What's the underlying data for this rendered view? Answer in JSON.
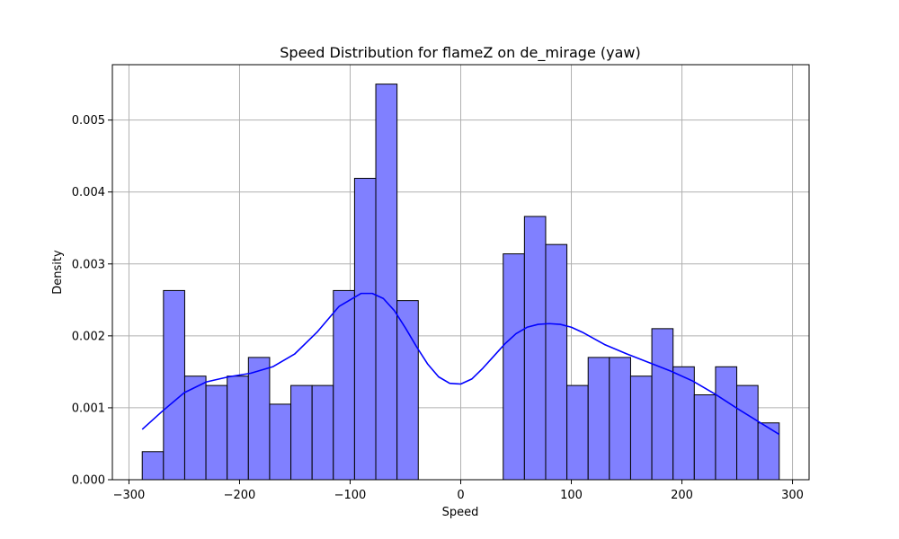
{
  "chart_data": {
    "type": "bar",
    "title": "Speed Distribution for flameZ on de_mirage (yaw)",
    "xlabel": "Speed",
    "ylabel": "Density",
    "xlim": [
      -315,
      315
    ],
    "ylim": [
      0,
      0.00577
    ],
    "grid": true,
    "xticks": [
      -300,
      -200,
      -100,
      0,
      100,
      200,
      300
    ],
    "xtick_labels": [
      "−300",
      "−200",
      "−100",
      "0",
      "100",
      "200",
      "300"
    ],
    "yticks": [
      0,
      0.001,
      0.002,
      0.003,
      0.004,
      0.005
    ],
    "ytick_labels": [
      "0.000",
      "0.001",
      "0.002",
      "0.003",
      "0.004",
      "0.005"
    ],
    "bin_edges": [
      -288,
      -268.8,
      -249.6,
      -230.4,
      -211.2,
      -192,
      -172.8,
      -153.6,
      -134.4,
      -115.2,
      -96,
      -76.8,
      -57.6,
      -38.4,
      -19.2,
      0,
      19.2,
      38.4,
      57.6,
      76.8,
      96,
      115.2,
      134.4,
      153.6,
      172.8,
      192,
      211.2,
      230.4,
      249.6,
      268.8,
      288
    ],
    "values": [
      0.00039,
      0.00263,
      0.00144,
      0.00131,
      0.00144,
      0.0017,
      0.00105,
      0.00131,
      0.00131,
      0.00263,
      0.00419,
      0.0055,
      0.00249,
      0,
      0,
      0,
      0,
      0.00314,
      0.00366,
      0.00327,
      0.00131,
      0.0017,
      0.0017,
      0.00144,
      0.0021,
      0.00157,
      0.00118,
      0.00157,
      0.00131,
      0.00079
    ],
    "kde": {
      "x": [
        -288,
        -270,
        -250,
        -230,
        -210,
        -190,
        -170,
        -150,
        -130,
        -110,
        -90,
        -80,
        -70,
        -60,
        -50,
        -40,
        -30,
        -20,
        -10,
        0,
        10,
        20,
        30,
        40,
        50,
        60,
        70,
        80,
        90,
        100,
        110,
        130,
        150,
        170,
        190,
        210,
        230,
        250,
        270,
        288
      ],
      "y": [
        0.0007,
        0.00095,
        0.00121,
        0.00136,
        0.00143,
        0.00148,
        0.00157,
        0.00175,
        0.00205,
        0.00241,
        0.00259,
        0.00259,
        0.00252,
        0.00235,
        0.00211,
        0.00185,
        0.00161,
        0.00143,
        0.00134,
        0.00133,
        0.0014,
        0.00155,
        0.00172,
        0.00189,
        0.00203,
        0.00212,
        0.00216,
        0.00217,
        0.00216,
        0.00212,
        0.00205,
        0.00188,
        0.00175,
        0.00163,
        0.00151,
        0.00137,
        0.00119,
        0.00099,
        0.0008,
        0.00063
      ]
    },
    "colors": {
      "bar_fill": "#8080ff",
      "bar_edge": "#000000",
      "kde_line": "#0000ff",
      "grid": "#b0b0b0"
    }
  }
}
